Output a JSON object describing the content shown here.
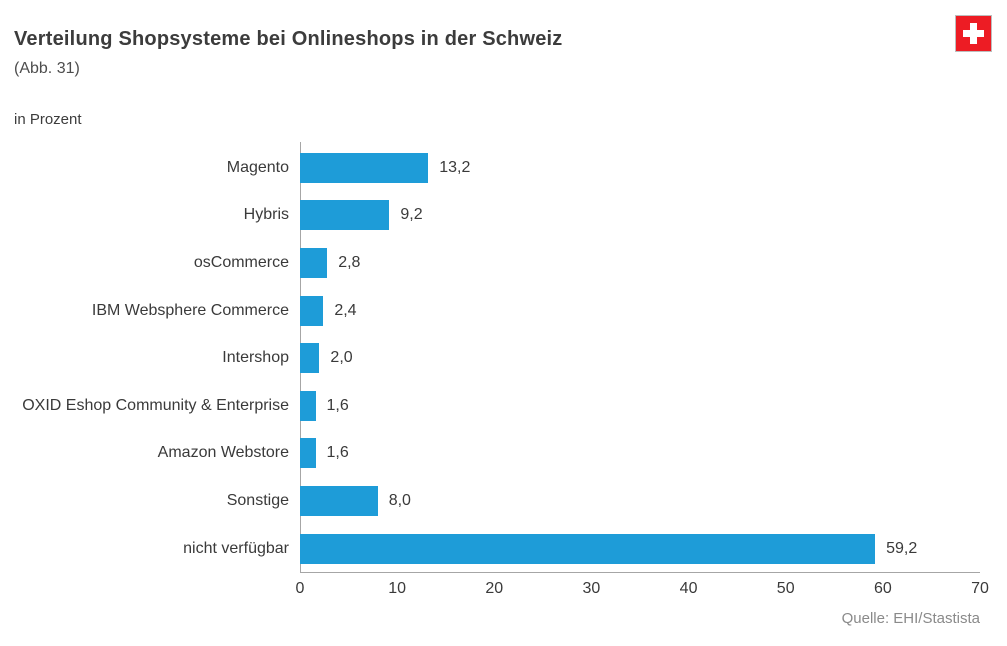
{
  "header": {
    "title": "Verteilung Shopsysteme bei Onlineshops in der Schweiz",
    "figure_label": "(Abb. 31)",
    "unit_label": "in Prozent",
    "flag_color": "#ed1c24"
  },
  "chart_data": {
    "type": "bar",
    "orientation": "horizontal",
    "title": "Verteilung Shopsysteme bei Onlineshops in der Schweiz",
    "xlabel": "in Prozent",
    "ylabel": "",
    "xlim": [
      0,
      70
    ],
    "grid": false,
    "legend": false,
    "bar_color": "#1e9cd8",
    "categories": [
      "Magento",
      "Hybris",
      "osCommerce",
      "IBM Websphere Commerce",
      "Intershop",
      "OXID Eshop Community & Enterprise",
      "Amazon Webstore",
      "Sonstige",
      "nicht verfügbar"
    ],
    "values": [
      13.2,
      9.2,
      2.8,
      2.4,
      2.0,
      1.6,
      1.6,
      8.0,
      59.2
    ],
    "value_labels": [
      "13,2",
      "9,2",
      "2,8",
      "2,4",
      "2,0",
      "1,6",
      "1,6",
      "8,0",
      "59,2"
    ],
    "x_ticks": [
      "0",
      "10",
      "20",
      "30",
      "40",
      "50",
      "60",
      "70"
    ]
  },
  "footer": {
    "source": "Quelle: EHI/Stastista"
  }
}
